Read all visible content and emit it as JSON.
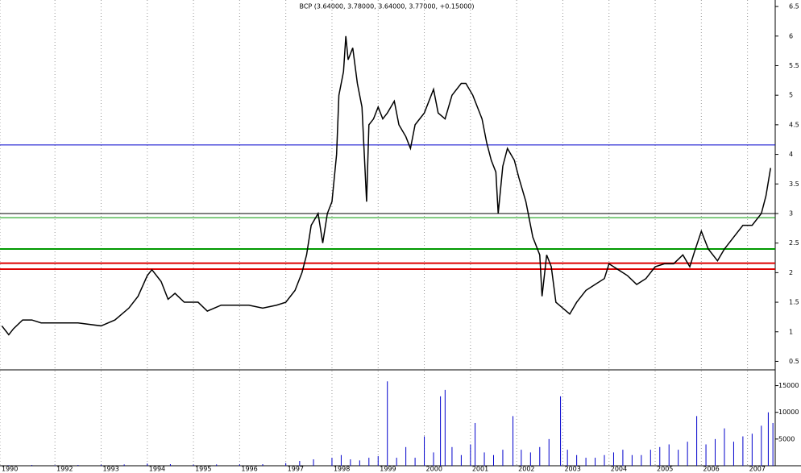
{
  "chart_data": {
    "type": "line",
    "title": "BCP (3.64000, 3.78000, 3.64000, 3.77000, +0.15000)",
    "x": [
      1990.85,
      1990.95,
      1991.0,
      1991.1,
      1991.3,
      1991.5,
      1991.7,
      1992.0,
      1992.5,
      1993.0,
      1993.3,
      1993.6,
      1993.8,
      1994.0,
      1994.1,
      1994.3,
      1994.45,
      1994.6,
      1994.8,
      1995.1,
      1995.3,
      1995.6,
      1995.9,
      1996.2,
      1996.5,
      1996.8,
      1997.0,
      1997.2,
      1997.35,
      1997.45,
      1997.55,
      1997.7,
      1997.8,
      1997.9,
      1998.0,
      1998.1,
      1998.15,
      1998.25,
      1998.3,
      1998.35,
      1998.45,
      1998.55,
      1998.65,
      1998.7,
      1998.75,
      1998.8,
      1998.9,
      1999.0,
      1999.1,
      1999.2,
      1999.35,
      1999.45,
      1999.6,
      1999.7,
      1999.8,
      2000.0,
      2000.2,
      2000.3,
      2000.45,
      2000.6,
      2000.8,
      2000.9,
      2001.05,
      2001.15,
      2001.25,
      2001.35,
      2001.45,
      2001.55,
      2001.6,
      2001.7,
      2001.8,
      2001.95,
      2002.05,
      2002.2,
      2002.35,
      2002.5,
      2002.55,
      2002.65,
      2002.75,
      2002.85,
      2003.0,
      2003.15,
      2003.3,
      2003.5,
      2003.7,
      2003.9,
      2004.0,
      2004.2,
      2004.4,
      2004.6,
      2004.8,
      2005.0,
      2005.2,
      2005.4,
      2005.6,
      2005.75,
      2005.85,
      2006.0,
      2006.15,
      2006.35,
      2006.5,
      2006.7,
      2006.9,
      2007.1,
      2007.3,
      2007.4,
      2007.5
    ],
    "series": [
      {
        "color": "#000000",
        "values": [
          1.1,
          1.0,
          0.95,
          1.05,
          1.2,
          1.2,
          1.15,
          1.15,
          1.15,
          1.1,
          1.2,
          1.4,
          1.6,
          1.95,
          2.05,
          1.85,
          1.55,
          1.65,
          1.5,
          1.5,
          1.35,
          1.45,
          1.45,
          1.45,
          1.4,
          1.45,
          1.5,
          1.7,
          2.0,
          2.3,
          2.8,
          3.0,
          2.5,
          3.0,
          3.2,
          4.0,
          5.0,
          5.4,
          6.0,
          5.6,
          5.8,
          5.2,
          4.8,
          4.0,
          3.2,
          4.5,
          4.6,
          4.8,
          4.6,
          4.7,
          4.9,
          4.5,
          4.3,
          4.1,
          4.5,
          4.7,
          5.1,
          4.7,
          4.6,
          5.0,
          5.2,
          5.2,
          5.0,
          4.8,
          4.6,
          4.2,
          3.9,
          3.7,
          3.0,
          3.8,
          4.1,
          3.9,
          3.6,
          3.2,
          2.6,
          2.3,
          1.6,
          2.3,
          2.1,
          1.5,
          1.4,
          1.3,
          1.5,
          1.7,
          1.8,
          1.9,
          2.15,
          2.05,
          1.95,
          1.8,
          1.9,
          2.1,
          2.15,
          2.15,
          2.3,
          2.1,
          2.35,
          2.7,
          2.4,
          2.2,
          2.4,
          2.6,
          2.8,
          2.8,
          3.0,
          3.3,
          3.77
        ]
      }
    ],
    "hlines": [
      {
        "value": 4.16,
        "color": "#0000cc",
        "width": 1
      },
      {
        "value": 3.0,
        "color": "#000000",
        "width": 1
      },
      {
        "value": 2.93,
        "color": "#009900",
        "width": 1
      },
      {
        "value": 2.4,
        "color": "#009900",
        "width": 2
      },
      {
        "value": 2.16,
        "color": "#dd0000",
        "width": 2
      },
      {
        "value": 2.06,
        "color": "#dd0000",
        "width": 2
      }
    ],
    "xlim": [
      1990.81,
      2007.6
    ],
    "xticks": [
      {
        "value": 1990.81,
        "label": "1990"
      },
      1992,
      1993,
      1994,
      1995,
      1996,
      1997,
      1998,
      1999,
      2000,
      2001,
      2002,
      2003,
      2004,
      2005,
      2006,
      2007
    ],
    "ylim": [
      0.37,
      6.61
    ],
    "yticks": [
      0.5,
      1.0,
      1.5,
      2.0,
      2.5,
      3.0,
      3.5,
      4.0,
      4.5,
      5.0,
      5.5,
      6.0,
      6.5
    ],
    "grid": true,
    "volume": {
      "type": "bar",
      "color": "#0000cc",
      "x": [
        1991.0,
        1991.5,
        1992.0,
        1992.5,
        1993.0,
        1993.5,
        1994.0,
        1994.5,
        1995.0,
        1995.5,
        1996.0,
        1996.5,
        1997.0,
        1997.3,
        1997.6,
        1998.0,
        1998.2,
        1998.4,
        1998.6,
        1998.8,
        1999.0,
        1999.2,
        1999.4,
        1999.6,
        1999.8,
        2000.0,
        2000.2,
        2000.35,
        2000.45,
        2000.6,
        2000.8,
        2001.0,
        2001.1,
        2001.3,
        2001.5,
        2001.7,
        2001.92,
        2002.1,
        2002.3,
        2002.5,
        2002.7,
        2002.95,
        2003.1,
        2003.3,
        2003.5,
        2003.7,
        2003.9,
        2004.1,
        2004.3,
        2004.5,
        2004.7,
        2004.9,
        2005.1,
        2005.3,
        2005.5,
        2005.7,
        2005.9,
        2006.1,
        2006.3,
        2006.5,
        2006.7,
        2006.9,
        2007.1,
        2007.3,
        2007.45,
        2007.55
      ],
      "values": [
        100,
        150,
        100,
        150,
        200,
        250,
        400,
        300,
        200,
        250,
        250,
        300,
        500,
        900,
        1200,
        1500,
        2000,
        1200,
        1000,
        1500,
        1800,
        15800,
        1500,
        3500,
        1500,
        5500,
        2500,
        13000,
        14200,
        3500,
        2000,
        4000,
        8000,
        2500,
        2000,
        3000,
        9300,
        3000,
        2500,
        3500,
        5000,
        13000,
        3000,
        2000,
        1500,
        1500,
        2000,
        2500,
        3000,
        2000,
        2000,
        3000,
        3500,
        4000,
        3000,
        4500,
        9300,
        4000,
        5000,
        7000,
        4500,
        5500,
        6000,
        7500,
        10000,
        8000
      ],
      "ylim": [
        0,
        17800
      ],
      "yticks": [
        5000,
        10000,
        15000
      ]
    }
  }
}
